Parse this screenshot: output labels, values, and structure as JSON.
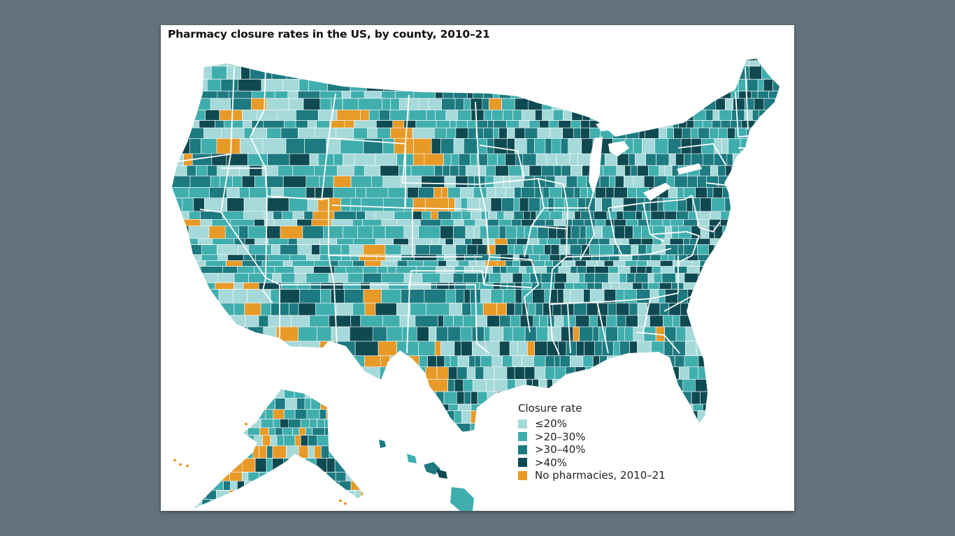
{
  "title": "Pharmacy closure rates in the US, by county, 2010–21",
  "legend": {
    "title": "Closure rate",
    "items": [
      {
        "key": "c1",
        "label": "≤20%",
        "color": "#a6d9d9"
      },
      {
        "key": "c2",
        "label": ">20–30%",
        "color": "#41aeae"
      },
      {
        "key": "c3",
        "label": ">30–40%",
        "color": "#1c7a80"
      },
      {
        "key": "c4",
        "label": ">40%",
        "color": "#0f4a52"
      },
      {
        "key": "none",
        "label": "No pharmacies, 2010–21",
        "color": "#e89a28"
      }
    ]
  },
  "colors": {
    "background": "#63737c",
    "card": "#ffffff",
    "border": "#ffffff"
  }
}
